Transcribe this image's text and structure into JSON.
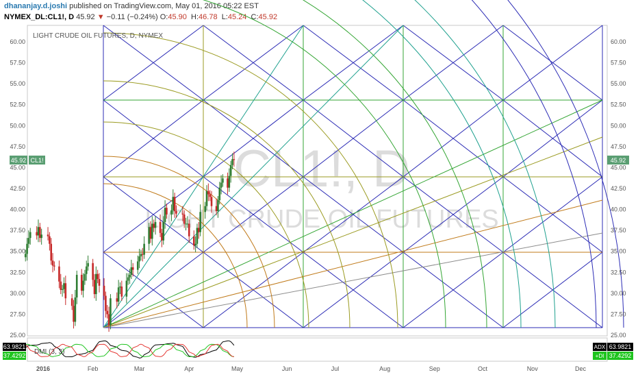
{
  "header": {
    "author": "dhananjay.d.joshi",
    "published": " published on TradingView.com, May 01, 2016 05:22 EST",
    "symbol": "NYMEX_DL:CL1!, D",
    "last": "45.92",
    "change_arrow": "▼",
    "change": "−0.11 (−0.24%)",
    "o_label": "O:",
    "o_value": "45.90",
    "h_label": "H:",
    "h_value": "46.78",
    "l_label": "L:",
    "l_value": "45.24",
    "c_label": "C:",
    "c_value": "45.92"
  },
  "chart_data": {
    "type": "candlestick",
    "title": "LIGHT CRUDE OIL FUTURES, D, NYMEX",
    "watermark_symbol": "CL1!, D",
    "watermark_name": "LIGHT CRUDE OIL FUTURES",
    "ylim": [
      25,
      62.5
    ],
    "y_ticks": [
      "60.00",
      "57.50",
      "55.00",
      "52.50",
      "50.00",
      "47.50",
      "45.00",
      "42.50",
      "40.00",
      "37.50",
      "35.00",
      "32.50",
      "30.00",
      "27.50",
      "25.00"
    ],
    "y_tick_values": [
      60,
      57.5,
      55,
      52.5,
      50,
      47.5,
      45,
      42.5,
      40,
      37.5,
      35,
      32.5,
      30,
      27.5,
      25
    ],
    "x_labels": [
      "2016",
      "Feb",
      "Mar",
      "Apr",
      "May",
      "Jun",
      "Jul",
      "Aug",
      "Sep",
      "Oct",
      "Nov",
      "Dec"
    ],
    "x_label_dates": [
      "2016-01-01",
      "2016-02-01",
      "2016-03-01",
      "2016-04-01",
      "2016-05-01",
      "2016-06-01",
      "2016-07-01",
      "2016-08-01",
      "2016-09-01",
      "2016-10-01",
      "2016-11-01",
      "2016-12-01"
    ],
    "last_price": 45.92,
    "last_price_label": "45.92",
    "symbol_label": "CL1!",
    "closes": [
      [
        "2015-12-21",
        34.7
      ],
      [
        "2015-12-22",
        35.9
      ],
      [
        "2015-12-23",
        36.6
      ],
      [
        "2015-12-24",
        37.3
      ],
      [
        "2015-12-28",
        36.9
      ],
      [
        "2015-12-29",
        37.9
      ],
      [
        "2015-12-30",
        36.6
      ],
      [
        "2015-12-31",
        37.0
      ],
      [
        "2016-01-04",
        36.8
      ],
      [
        "2016-01-05",
        35.9
      ],
      [
        "2016-01-06",
        33.9
      ],
      [
        "2016-01-07",
        33.3
      ],
      [
        "2016-01-08",
        33.2
      ],
      [
        "2016-01-11",
        31.4
      ],
      [
        "2016-01-12",
        30.4
      ],
      [
        "2016-01-13",
        30.5
      ],
      [
        "2016-01-14",
        31.2
      ],
      [
        "2016-01-15",
        29.4
      ],
      [
        "2016-01-19",
        28.5
      ],
      [
        "2016-01-20",
        26.6
      ],
      [
        "2016-01-21",
        29.5
      ],
      [
        "2016-01-22",
        32.2
      ],
      [
        "2016-01-25",
        30.3
      ],
      [
        "2016-01-26",
        31.5
      ],
      [
        "2016-01-27",
        32.3
      ],
      [
        "2016-01-28",
        33.2
      ],
      [
        "2016-01-29",
        33.6
      ],
      [
        "2016-02-01",
        31.6
      ],
      [
        "2016-02-02",
        29.9
      ],
      [
        "2016-02-03",
        32.3
      ],
      [
        "2016-02-04",
        31.7
      ],
      [
        "2016-02-05",
        30.9
      ],
      [
        "2016-02-08",
        29.7
      ],
      [
        "2016-02-09",
        27.9
      ],
      [
        "2016-02-10",
        27.5
      ],
      [
        "2016-02-11",
        26.2
      ],
      [
        "2016-02-12",
        29.4
      ],
      [
        "2016-02-16",
        29.0
      ],
      [
        "2016-02-17",
        30.7
      ],
      [
        "2016-02-18",
        30.8
      ],
      [
        "2016-02-19",
        29.6
      ],
      [
        "2016-02-22",
        31.5
      ],
      [
        "2016-02-23",
        31.9
      ],
      [
        "2016-02-24",
        32.2
      ],
      [
        "2016-02-25",
        33.1
      ],
      [
        "2016-02-26",
        32.8
      ],
      [
        "2016-02-29",
        33.8
      ],
      [
        "2016-03-01",
        34.4
      ],
      [
        "2016-03-02",
        34.7
      ],
      [
        "2016-03-03",
        34.6
      ],
      [
        "2016-03-04",
        35.9
      ],
      [
        "2016-03-07",
        37.9
      ],
      [
        "2016-03-08",
        36.5
      ],
      [
        "2016-03-09",
        38.3
      ],
      [
        "2016-03-10",
        37.8
      ],
      [
        "2016-03-11",
        38.5
      ],
      [
        "2016-03-14",
        37.2
      ],
      [
        "2016-03-15",
        36.3
      ],
      [
        "2016-03-16",
        38.5
      ],
      [
        "2016-03-17",
        40.2
      ],
      [
        "2016-03-18",
        39.4
      ],
      [
        "2016-03-21",
        39.9
      ],
      [
        "2016-03-22",
        41.5
      ],
      [
        "2016-03-23",
        39.8
      ],
      [
        "2016-03-24",
        39.5
      ],
      [
        "2016-03-28",
        39.4
      ],
      [
        "2016-03-29",
        38.3
      ],
      [
        "2016-03-30",
        38.3
      ],
      [
        "2016-03-31",
        38.3
      ],
      [
        "2016-04-01",
        36.8
      ],
      [
        "2016-04-04",
        35.7
      ],
      [
        "2016-04-05",
        35.9
      ],
      [
        "2016-04-06",
        37.8
      ],
      [
        "2016-04-07",
        37.3
      ],
      [
        "2016-04-08",
        39.7
      ],
      [
        "2016-04-11",
        40.4
      ],
      [
        "2016-04-12",
        42.2
      ],
      [
        "2016-04-13",
        41.8
      ],
      [
        "2016-04-14",
        41.5
      ],
      [
        "2016-04-15",
        40.4
      ],
      [
        "2016-04-18",
        39.8
      ],
      [
        "2016-04-19",
        41.1
      ],
      [
        "2016-04-20",
        42.6
      ],
      [
        "2016-04-21",
        43.2
      ],
      [
        "2016-04-22",
        43.7
      ],
      [
        "2016-04-25",
        42.6
      ],
      [
        "2016-04-26",
        44.0
      ],
      [
        "2016-04-27",
        45.3
      ],
      [
        "2016-04-28",
        46.0
      ],
      [
        "2016-04-29",
        45.9
      ]
    ]
  },
  "dmi": {
    "label": "DMI (3, 3)",
    "left_values": [
      "63.9821",
      "37.4292"
    ],
    "adx_label": "ADX",
    "adx_value": "63.9821",
    "di_label": "+DI",
    "di_value": "37.4292"
  },
  "colors": {
    "up": "#2e7d32",
    "down": "#c62828",
    "grid_blue": "#2b2bb5",
    "grid_green": "#33a533",
    "grid_olive": "#9a9a20",
    "grid_orange": "#c07a1a",
    "teal": "#1ea08e",
    "price_tag": "#5a9e72"
  }
}
